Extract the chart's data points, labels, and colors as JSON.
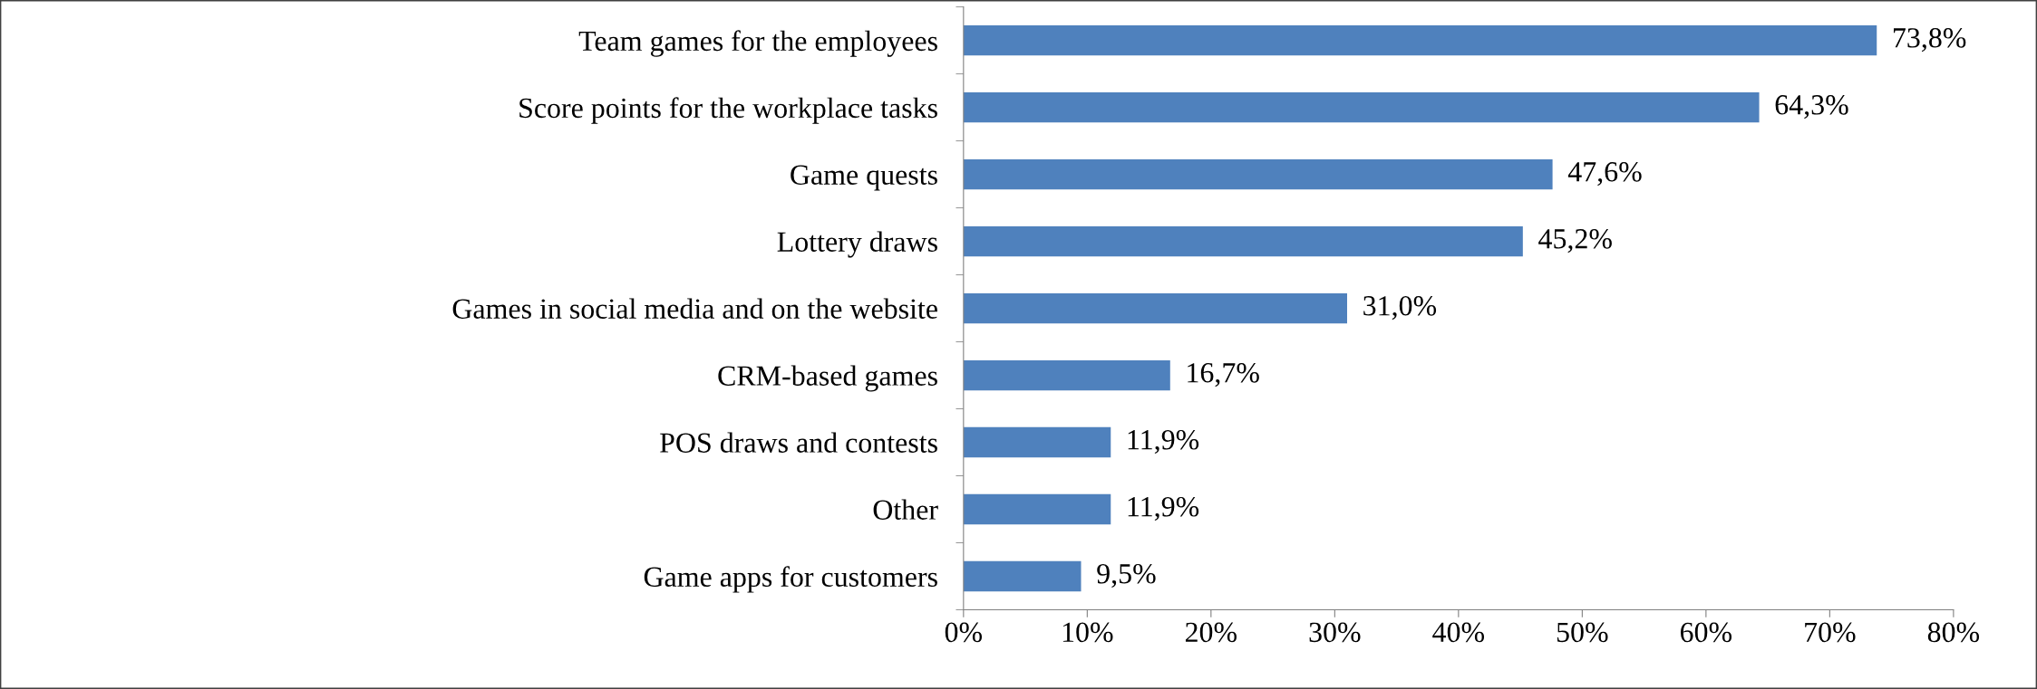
{
  "chart_data": {
    "type": "bar",
    "orientation": "horizontal",
    "categories": [
      "Team games for the employees",
      "Score points for the workplace tasks",
      "Game quests",
      "Lottery draws",
      "Games in social media and on the website",
      "CRM-based games",
      "POS draws and contests",
      "Other",
      "Game apps for customers"
    ],
    "values": [
      73.8,
      64.3,
      47.6,
      45.2,
      31.0,
      16.7,
      11.9,
      11.9,
      9.5
    ],
    "value_labels": [
      "73,8%",
      "64,3%",
      "47,6%",
      "45,2%",
      "31,0%",
      "16,7%",
      "11,9%",
      "11,9%",
      "9,5%"
    ],
    "color": "#4f81bd",
    "xlim": [
      0,
      80
    ],
    "xticks": [
      {
        "value": 0,
        "label": "0%"
      },
      {
        "value": 10,
        "label": "10%"
      },
      {
        "value": 20,
        "label": "20%"
      },
      {
        "value": 30,
        "label": "30%"
      },
      {
        "value": 40,
        "label": "40%"
      },
      {
        "value": 50,
        "label": "50%"
      },
      {
        "value": 60,
        "label": "60%"
      },
      {
        "value": 70,
        "label": "70%"
      },
      {
        "value": 80,
        "label": "80%"
      }
    ],
    "grid": false,
    "legend": false
  }
}
